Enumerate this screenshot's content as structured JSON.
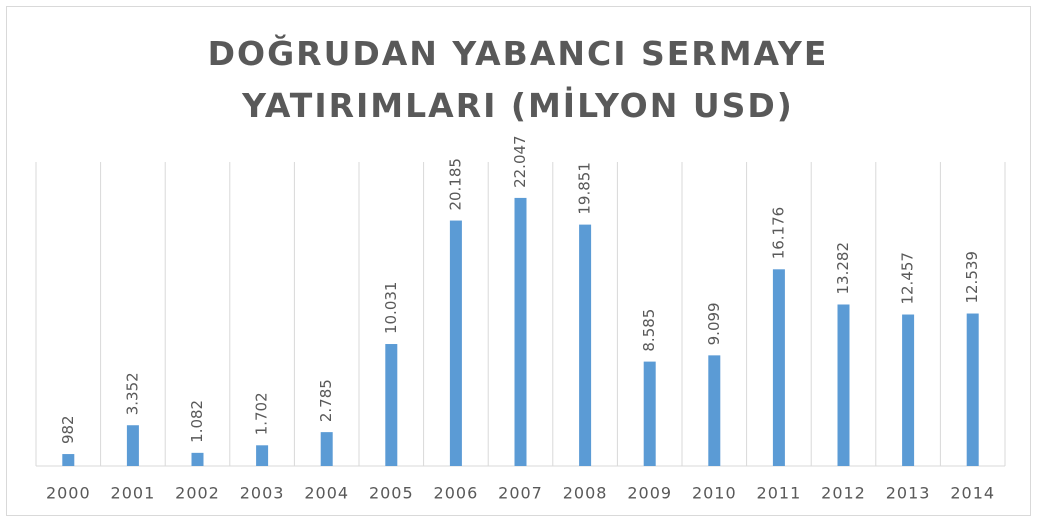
{
  "chart_data": {
    "type": "bar",
    "title": "DOĞRUDAN YABANCI SERMAYE YATIRIMLARI (MİLYON USD)",
    "categories": [
      "2000",
      "2001",
      "2002",
      "2003",
      "2004",
      "2005",
      "2006",
      "2007",
      "2008",
      "2009",
      "2010",
      "2011",
      "2012",
      "2013",
      "2014"
    ],
    "values": [
      982,
      3352,
      1082,
      1702,
      2785,
      10031,
      20185,
      22047,
      19851,
      8585,
      9099,
      16176,
      13282,
      12457,
      12539
    ],
    "value_labels": [
      "982",
      "3.352",
      "1.082",
      "1.702",
      "2.785",
      "10.031",
      "20.185",
      "22.047",
      "19.851",
      "8.585",
      "9.099",
      "16.176",
      "13.282",
      "12.457",
      "12.539"
    ],
    "color": "#5b9bd5",
    "ylim": [
      0,
      25000
    ],
    "grid": true
  }
}
